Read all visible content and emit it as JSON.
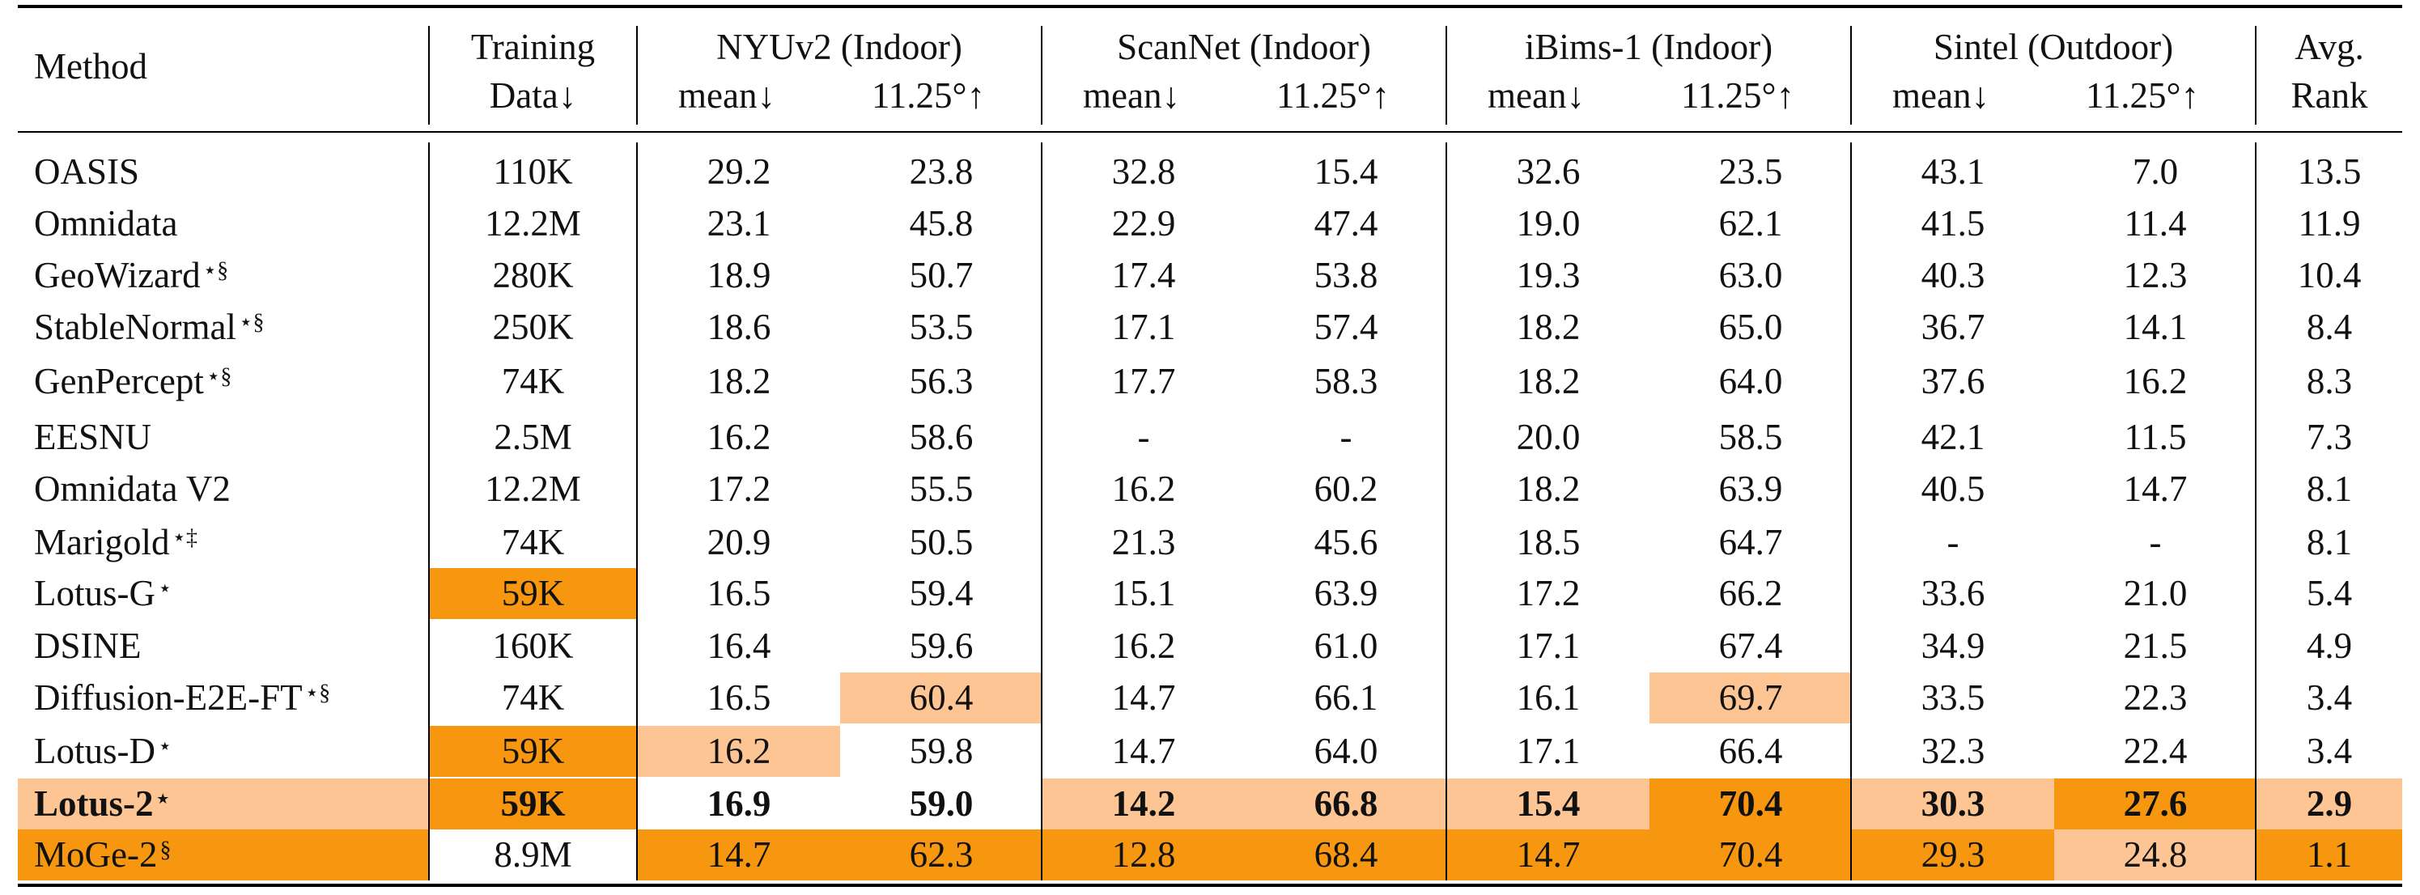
{
  "colors": {
    "best": "#f7970f",
    "second": "#fdc593"
  },
  "header": {
    "method": "Method",
    "training_top": "Training",
    "training_bottom": "Data↓",
    "groups": [
      {
        "title": "NYUv2 (Indoor)",
        "mean": "mean↓",
        "acc": "11.25°↑"
      },
      {
        "title": "ScanNet (Indoor)",
        "mean": "mean↓",
        "acc": "11.25°↑"
      },
      {
        "title": "iBims-1 (Indoor)",
        "mean": "mean↓",
        "acc": "11.25°↑"
      },
      {
        "title": "Sintel (Outdoor)",
        "mean": "mean↓",
        "acc": "11.25°↑"
      }
    ],
    "avg_top": "Avg.",
    "avg_bottom": "Rank"
  },
  "rows": [
    {
      "method": "OASIS",
      "mark": "",
      "bold": false,
      "row_hl": "",
      "cells": [
        "110K",
        "29.2",
        "23.8",
        "32.8",
        "15.4",
        "32.6",
        "23.5",
        "43.1",
        "7.0",
        "13.5"
      ],
      "hl": [
        "",
        "",
        "",
        "",
        "",
        "",
        "",
        "",
        "",
        ""
      ]
    },
    {
      "method": "Omnidata",
      "mark": "",
      "bold": false,
      "row_hl": "",
      "cells": [
        "12.2M",
        "23.1",
        "45.8",
        "22.9",
        "47.4",
        "19.0",
        "62.1",
        "41.5",
        "11.4",
        "11.9"
      ],
      "hl": [
        "",
        "",
        "",
        "",
        "",
        "",
        "",
        "",
        "",
        ""
      ]
    },
    {
      "method": "GeoWizard",
      "mark": "⋆§",
      "bold": false,
      "row_hl": "",
      "cells": [
        "280K",
        "18.9",
        "50.7",
        "17.4",
        "53.8",
        "19.3",
        "63.0",
        "40.3",
        "12.3",
        "10.4"
      ],
      "hl": [
        "",
        "",
        "",
        "",
        "",
        "",
        "",
        "",
        "",
        ""
      ]
    },
    {
      "method": "StableNormal",
      "mark": "⋆§",
      "bold": false,
      "row_hl": "",
      "cells": [
        "250K",
        "18.6",
        "53.5",
        "17.1",
        "57.4",
        "18.2",
        "65.0",
        "36.7",
        "14.1",
        "8.4"
      ],
      "hl": [
        "",
        "",
        "",
        "",
        "",
        "",
        "",
        "",
        "",
        ""
      ]
    },
    {
      "method": "GenPercept",
      "mark": "⋆§",
      "bold": false,
      "row_hl": "",
      "cells": [
        "74K",
        "18.2",
        "56.3",
        "17.7",
        "58.3",
        "18.2",
        "64.0",
        "37.6",
        "16.2",
        "8.3"
      ],
      "hl": [
        "",
        "",
        "",
        "",
        "",
        "",
        "",
        "",
        "",
        ""
      ]
    },
    {
      "method": "EESNU",
      "mark": "",
      "bold": false,
      "row_hl": "",
      "cells": [
        "2.5M",
        "16.2",
        "58.6",
        "-",
        "-",
        "20.0",
        "58.5",
        "42.1",
        "11.5",
        "7.3"
      ],
      "hl": [
        "",
        "",
        "",
        "",
        "",
        "",
        "",
        "",
        "",
        ""
      ]
    },
    {
      "method": "Omnidata V2",
      "mark": "",
      "bold": false,
      "row_hl": "",
      "cells": [
        "12.2M",
        "17.2",
        "55.5",
        "16.2",
        "60.2",
        "18.2",
        "63.9",
        "40.5",
        "14.7",
        "8.1"
      ],
      "hl": [
        "",
        "",
        "",
        "",
        "",
        "",
        "",
        "",
        "",
        ""
      ]
    },
    {
      "method": "Marigold",
      "mark": "⋆‡",
      "bold": false,
      "row_hl": "",
      "cells": [
        "74K",
        "20.9",
        "50.5",
        "21.3",
        "45.6",
        "18.5",
        "64.7",
        "-",
        "-",
        "8.1"
      ],
      "hl": [
        "",
        "",
        "",
        "",
        "",
        "",
        "",
        "",
        "",
        ""
      ]
    },
    {
      "method": "Lotus-G",
      "mark": "⋆",
      "bold": false,
      "row_hl": "",
      "cells": [
        "59K",
        "16.5",
        "59.4",
        "15.1",
        "63.9",
        "17.2",
        "66.2",
        "33.6",
        "21.0",
        "5.4"
      ],
      "hl": [
        "dark",
        "",
        "",
        "",
        "",
        "",
        "",
        "",
        "",
        ""
      ]
    },
    {
      "method": "DSINE",
      "mark": "",
      "bold": false,
      "row_hl": "",
      "cells": [
        "160K",
        "16.4",
        "59.6",
        "16.2",
        "61.0",
        "17.1",
        "67.4",
        "34.9",
        "21.5",
        "4.9"
      ],
      "hl": [
        "",
        "",
        "",
        "",
        "",
        "",
        "",
        "",
        "",
        ""
      ]
    },
    {
      "method": "Diffusion-E2E-FT",
      "mark": "⋆§",
      "bold": false,
      "row_hl": "",
      "cells": [
        "74K",
        "16.5",
        "60.4",
        "14.7",
        "66.1",
        "16.1",
        "69.7",
        "33.5",
        "22.3",
        "3.4"
      ],
      "hl": [
        "",
        "",
        "light",
        "",
        "",
        "",
        "light",
        "",
        "",
        ""
      ]
    },
    {
      "method": "Lotus-D",
      "mark": "⋆",
      "bold": false,
      "row_hl": "",
      "cells": [
        "59K",
        "16.2",
        "59.8",
        "14.7",
        "64.0",
        "17.1",
        "66.4",
        "32.3",
        "22.4",
        "3.4"
      ],
      "hl": [
        "dark",
        "light",
        "",
        "",
        "",
        "",
        "",
        "",
        "",
        ""
      ]
    },
    {
      "method": "Lotus-2",
      "mark": "⋆",
      "bold": true,
      "row_hl": "light",
      "cells": [
        "59K",
        "16.9",
        "59.0",
        "14.2",
        "66.8",
        "15.4",
        "70.4",
        "30.3",
        "27.6",
        "2.9"
      ],
      "hl": [
        "dark",
        "white",
        "white",
        "light",
        "light",
        "light",
        "dark",
        "light",
        "dark",
        "light"
      ]
    },
    {
      "method": "MoGe-2",
      "mark": "§",
      "bold": false,
      "row_hl": "dark",
      "cells": [
        "8.9M",
        "14.7",
        "62.3",
        "12.8",
        "68.4",
        "14.7",
        "70.4",
        "29.3",
        "24.8",
        "1.1"
      ],
      "hl": [
        "white",
        "dark",
        "dark",
        "dark",
        "dark",
        "dark",
        "dark",
        "dark",
        "light",
        "dark"
      ]
    }
  ]
}
